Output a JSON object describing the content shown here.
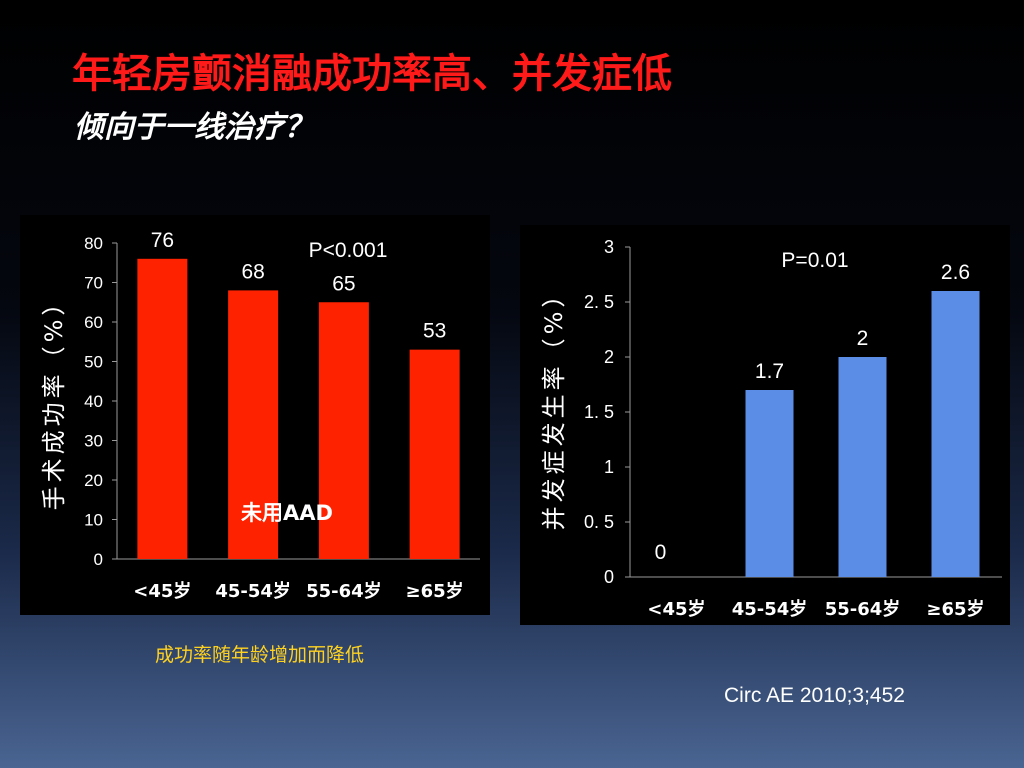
{
  "slide": {
    "title": "年轻房颤消融成功率高、并发症低",
    "subtitle": "倾向于一线治疗？",
    "caption": "成功率随年龄增加而降低",
    "citation": "Circ AE 2010;3;452"
  },
  "colors": {
    "title": "#ff1a1a",
    "left_bar": "#ff2200",
    "right_bar": "#5b8de6",
    "caption": "#ffd21f"
  },
  "chart_data": [
    {
      "type": "bar",
      "categories": [
        "<45岁",
        "45-54岁",
        "55-64岁",
        "≥65岁"
      ],
      "values": [
        76,
        68,
        65,
        53
      ],
      "data_labels": [
        "76",
        "68",
        "65",
        "53"
      ],
      "ylabel": "手术成功率（%）",
      "ylim": [
        0,
        80
      ],
      "yticks": [
        "0",
        "10",
        "20",
        "30",
        "40",
        "50",
        "60",
        "70",
        "80"
      ],
      "annotations": [
        "P<0.001",
        "未用AAD"
      ],
      "grid": false
    },
    {
      "type": "bar",
      "categories": [
        "<45岁",
        "45-54岁",
        "55-64岁",
        "≥65岁"
      ],
      "values": [
        0,
        1.7,
        2,
        2.6
      ],
      "data_labels": [
        "0",
        "1.7",
        "2",
        "2.6"
      ],
      "ylabel": "并发症发生率（%）",
      "ylim": [
        0,
        3
      ],
      "yticks": [
        "0",
        "0. 5",
        "1",
        "1. 5",
        "2",
        "2. 5",
        "3"
      ],
      "annotations": [
        "P=0.01"
      ],
      "grid": false
    }
  ]
}
